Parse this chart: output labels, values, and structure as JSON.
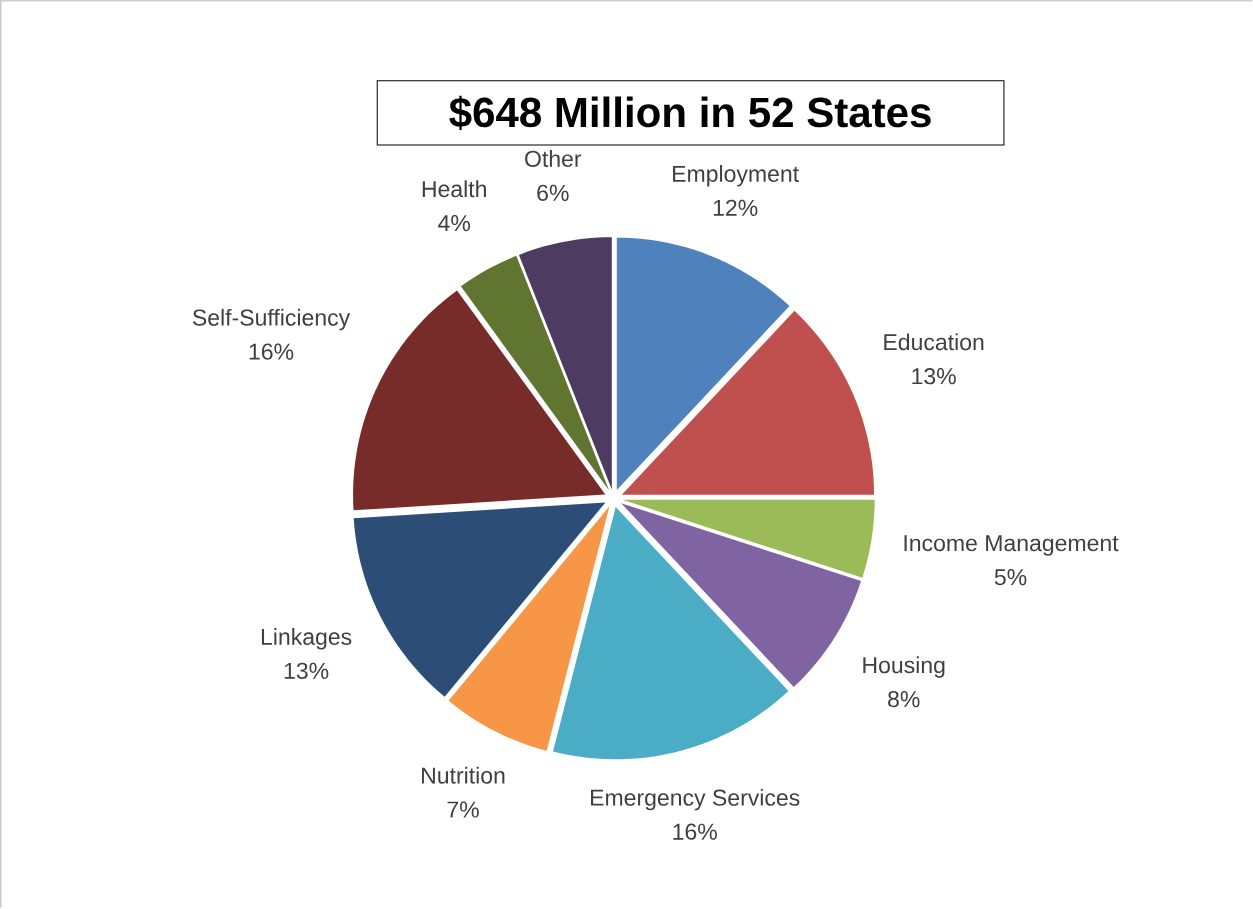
{
  "chart_data": {
    "type": "pie",
    "title": "$648 Million in 52 States",
    "categories": [
      "Employment",
      "Education",
      "Income Management",
      "Housing",
      "Emergency Services",
      "Nutrition",
      "Linkages",
      "Self-Sufficiency",
      "Health",
      "Other"
    ],
    "values": [
      12,
      13,
      5,
      8,
      16,
      7,
      13,
      16,
      4,
      6
    ],
    "value_labels": [
      "12%",
      "13%",
      "5%",
      "8%",
      "16%",
      "7%",
      "13%",
      "16%",
      "4%",
      "6%"
    ],
    "colors": [
      "#4f81bd",
      "#c0504d",
      "#9bbb59",
      "#8064a2",
      "#4bacc6",
      "#f79646",
      "#2c4d75",
      "#772c2a",
      "#5f7530",
      "#4d3b62"
    ]
  }
}
